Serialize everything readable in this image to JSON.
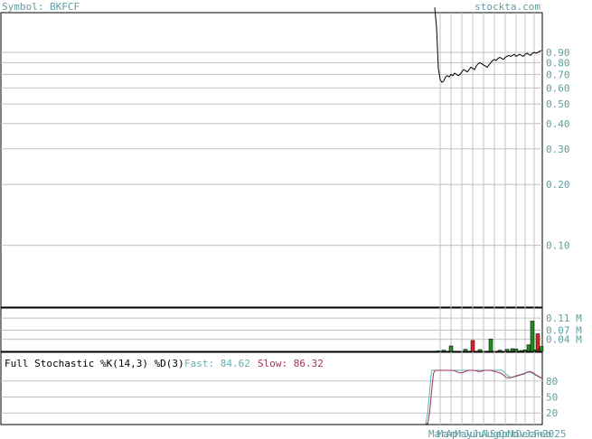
{
  "header": {
    "symbol_label": "Symbol: BKFCF",
    "site": "stockta.com"
  },
  "colors": {
    "teal": "#5f9ea0",
    "grid": "#c0c0c0",
    "up": "#228b22",
    "down": "#dd2222",
    "fast": "#5fb0b0",
    "slow": "#a03060"
  },
  "chart_data": [
    {
      "type": "line",
      "name": "price",
      "scale": "log",
      "ylim": [
        0.05,
        1.4
      ],
      "yticks": [
        0.9,
        0.8,
        0.7,
        0.6,
        0.5,
        0.4,
        0.3,
        0.2,
        0.1
      ],
      "ytick_labels": [
        "0.90",
        "0.80",
        "0.70",
        "0.60",
        "0.50",
        "0.40",
        "0.30",
        "0.20",
        "0.10"
      ],
      "x_index": [
        0,
        1,
        2,
        3,
        4,
        5,
        6,
        7,
        8,
        9,
        10,
        11,
        12,
        13,
        14,
        15,
        16,
        17,
        18,
        19,
        20,
        21,
        22,
        23,
        24,
        25,
        26,
        27,
        28,
        29,
        30,
        31,
        32,
        33,
        34,
        35,
        36,
        37,
        38,
        39,
        40,
        41,
        42,
        43,
        44,
        45,
        46,
        47,
        48,
        49,
        50,
        51,
        52,
        53,
        54,
        55,
        56,
        57,
        58,
        59
      ],
      "values": [
        1.5,
        1.2,
        0.75,
        0.66,
        0.64,
        0.65,
        0.68,
        0.69,
        0.68,
        0.7,
        0.69,
        0.71,
        0.7,
        0.69,
        0.7,
        0.72,
        0.74,
        0.73,
        0.72,
        0.74,
        0.76,
        0.75,
        0.74,
        0.77,
        0.79,
        0.8,
        0.79,
        0.78,
        0.77,
        0.76,
        0.78,
        0.8,
        0.82,
        0.83,
        0.82,
        0.84,
        0.85,
        0.84,
        0.83,
        0.85,
        0.86,
        0.87,
        0.86,
        0.87,
        0.88,
        0.86,
        0.87,
        0.88,
        0.87,
        0.86,
        0.88,
        0.89,
        0.88,
        0.87,
        0.89,
        0.9,
        0.89,
        0.9,
        0.91,
        0.92
      ]
    },
    {
      "type": "bar",
      "name": "volume",
      "ylim": [
        0,
        0.14
      ],
      "yticks": [
        0.11,
        0.07,
        0.04
      ],
      "ytick_labels": [
        "0.11 M",
        "0.07 M",
        "0.04 M"
      ],
      "bars": [
        {
          "i": 2,
          "v": 0.002,
          "up": true
        },
        {
          "i": 5,
          "v": 0.004,
          "up": true
        },
        {
          "i": 9,
          "v": 0.018,
          "up": true
        },
        {
          "i": 17,
          "v": 0.007,
          "up": true
        },
        {
          "i": 21,
          "v": 0.036,
          "up": false
        },
        {
          "i": 25,
          "v": 0.006,
          "up": true
        },
        {
          "i": 31,
          "v": 0.041,
          "up": true
        },
        {
          "i": 36,
          "v": 0.004,
          "up": true
        },
        {
          "i": 40,
          "v": 0.007,
          "up": true
        },
        {
          "i": 43,
          "v": 0.009,
          "up": true
        },
        {
          "i": 45,
          "v": 0.008,
          "up": true
        },
        {
          "i": 48,
          "v": 0.003,
          "up": true
        },
        {
          "i": 50,
          "v": 0.005,
          "up": true
        },
        {
          "i": 52,
          "v": 0.022,
          "up": true
        },
        {
          "i": 54,
          "v": 0.1,
          "up": true
        },
        {
          "i": 56,
          "v": 0.005,
          "up": true
        },
        {
          "i": 57,
          "v": 0.058,
          "up": false
        },
        {
          "i": 58,
          "v": 0.006,
          "up": true
        },
        {
          "i": 59,
          "v": 0.016,
          "up": true
        }
      ]
    },
    {
      "type": "line",
      "name": "stochastic",
      "title": "Full Stochastic %K(14,3) %D(3)",
      "fast_label": "Fast: 84.62",
      "slow_label": "Slow: 86.32",
      "ylim": [
        0,
        100
      ],
      "yticks": [
        80,
        50,
        20
      ],
      "ytick_labels": [
        "80",
        "50",
        "20"
      ],
      "fast": [
        0,
        20,
        60,
        100,
        100,
        100,
        100,
        100,
        100,
        100,
        100,
        100,
        100,
        100,
        100,
        100,
        100,
        100,
        100,
        100,
        100,
        100,
        100,
        100,
        100,
        100,
        100,
        100,
        100,
        100,
        100,
        100,
        100,
        100,
        100,
        100,
        100,
        100,
        100,
        100,
        97,
        93,
        90,
        88,
        87,
        88,
        90,
        91,
        92,
        93,
        94,
        95,
        96,
        97,
        95,
        93,
        91,
        89,
        87,
        85
      ],
      "slow": [
        0,
        0,
        20,
        60,
        95,
        100,
        100,
        100,
        100,
        100,
        100,
        100,
        100,
        100,
        100,
        99,
        97,
        96,
        95,
        96,
        98,
        99,
        100,
        100,
        100,
        100,
        99,
        98,
        98,
        99,
        100,
        100,
        100,
        100,
        99,
        98,
        97,
        96,
        95,
        93,
        90,
        87,
        86,
        86,
        87,
        88,
        89,
        90,
        91,
        92,
        93,
        95,
        97,
        98,
        97,
        95,
        92,
        90,
        88,
        86
      ]
    }
  ],
  "x_axis": {
    "date_labels": [
      "Mar",
      "Mar",
      "Apr",
      "May",
      "Jun",
      "Jul",
      "Aug",
      "Sep",
      "Oct",
      "Nov",
      "Dec",
      "Jan",
      "Feb",
      "2025"
    ]
  }
}
